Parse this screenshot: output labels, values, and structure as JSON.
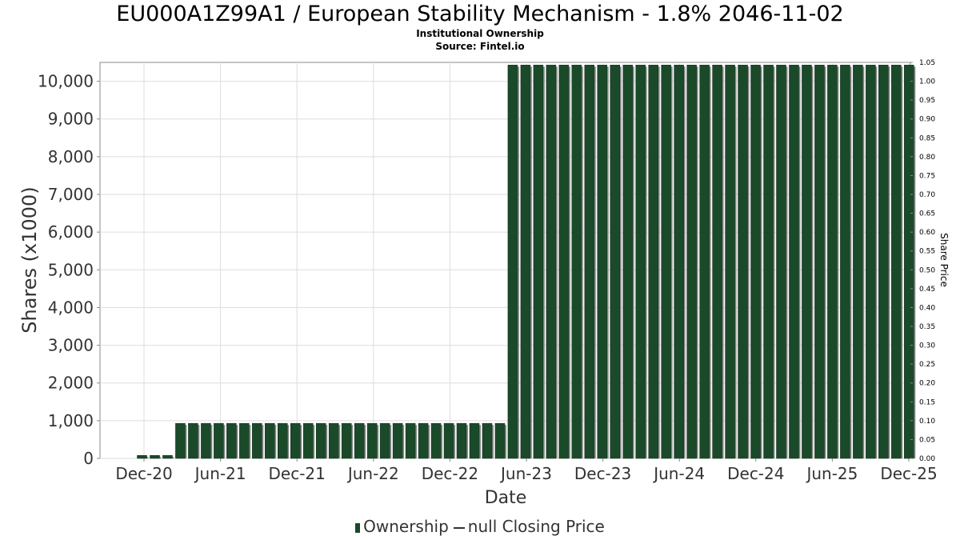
{
  "title": "EU000A1Z99A1 / European Stability Mechanism - 1.8% 2046-11-02",
  "subtitle1": "Institutional Ownership",
  "subtitle2": "Source: Fintel.io",
  "legend": {
    "ownership_label": "Ownership",
    "price_label": "null Closing Price"
  },
  "colors": {
    "bar": "#1b4a2a",
    "bar_shadow": "#8a8a8a",
    "grid": "#dddddd",
    "axis": "#888888"
  },
  "chart_data": {
    "type": "bar",
    "xlabel": "Date",
    "ylabel": "Shares (x1000)",
    "y2label": "Share Price",
    "ylim": [
      0,
      10500
    ],
    "y2lim": [
      0,
      1.05
    ],
    "yticks": [
      "0",
      "1,000",
      "2,000",
      "3,000",
      "4,000",
      "5,000",
      "6,000",
      "7,000",
      "8,000",
      "9,000",
      "10,000"
    ],
    "y2ticks": [
      "0.00",
      "0.05",
      "0.10",
      "0.15",
      "0.20",
      "0.25",
      "0.30",
      "0.35",
      "0.40",
      "0.45",
      "0.50",
      "0.55",
      "0.60",
      "0.65",
      "0.70",
      "0.75",
      "0.80",
      "0.85",
      "0.90",
      "0.95",
      "1.00",
      "1.05"
    ],
    "xticks": [
      "Dec-20",
      "Jun-21",
      "Dec-21",
      "Jun-22",
      "Dec-22",
      "Jun-23",
      "Dec-23",
      "Jun-24",
      "Dec-24",
      "Jun-25",
      "Dec-25"
    ],
    "grid": true,
    "legend_position": "bottom",
    "series": [
      {
        "name": "Ownership",
        "values": [
          80,
          80,
          80,
          930,
          930,
          930,
          930,
          930,
          930,
          930,
          930,
          930,
          930,
          930,
          930,
          930,
          930,
          930,
          930,
          930,
          930,
          930,
          930,
          930,
          930,
          930,
          930,
          930,
          930,
          10430,
          10430,
          10430,
          10430,
          10430,
          10430,
          10430,
          10430,
          10430,
          10430,
          10430,
          10430,
          10430,
          10430,
          10430,
          10430,
          10430,
          10430,
          10430,
          10430,
          10430,
          10430,
          10430,
          10430,
          10430,
          10430,
          10430,
          10430,
          10430,
          10430,
          10430,
          10430
        ]
      }
    ]
  }
}
